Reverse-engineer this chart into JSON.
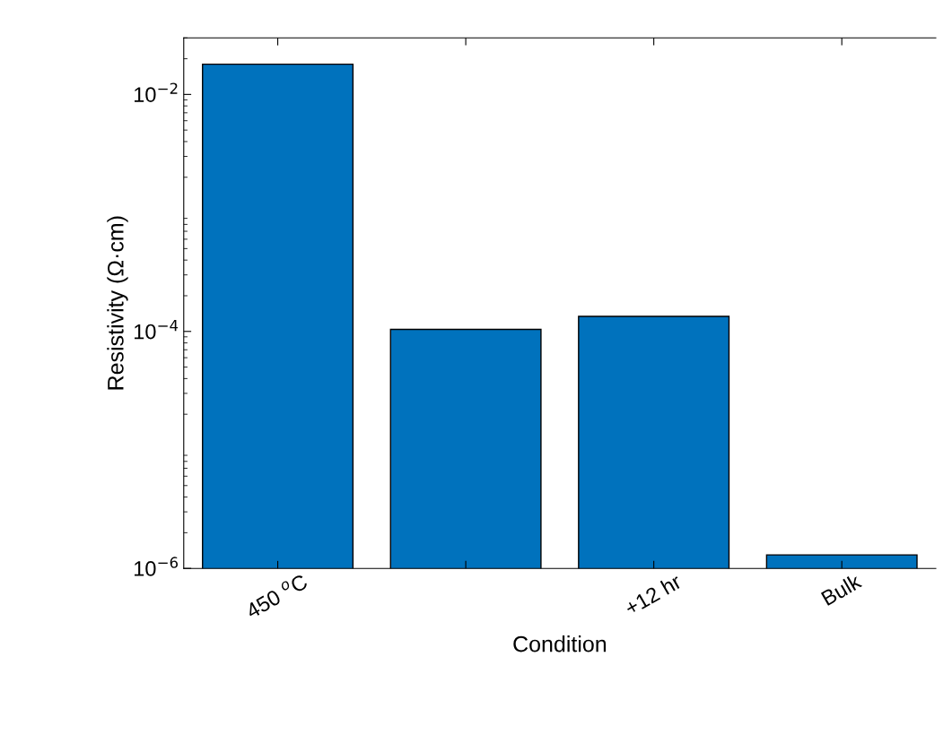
{
  "chart_data": {
    "type": "bar",
    "xlabel": "Condition",
    "ylabel": "Resistivity (Ω·cm)",
    "categories": [
      "450 $^{o}$C",
      null,
      "+12 hr",
      "Bulk"
    ],
    "values": [
      0.018,
      0.000104,
      0.000134,
      1.3e-06
    ],
    "color": "#0072bd",
    "log": true,
    "ylim": [
      1e-06,
      0.03
    ],
    "yticks": [
      {
        "value": 1e-06,
        "label": "10$^{−6}$"
      },
      {
        "value": 0.0001,
        "label": "10$^{−4}$"
      },
      {
        "value": 0.01,
        "label": "10$^{−2}$"
      }
    ],
    "grid": false
  }
}
